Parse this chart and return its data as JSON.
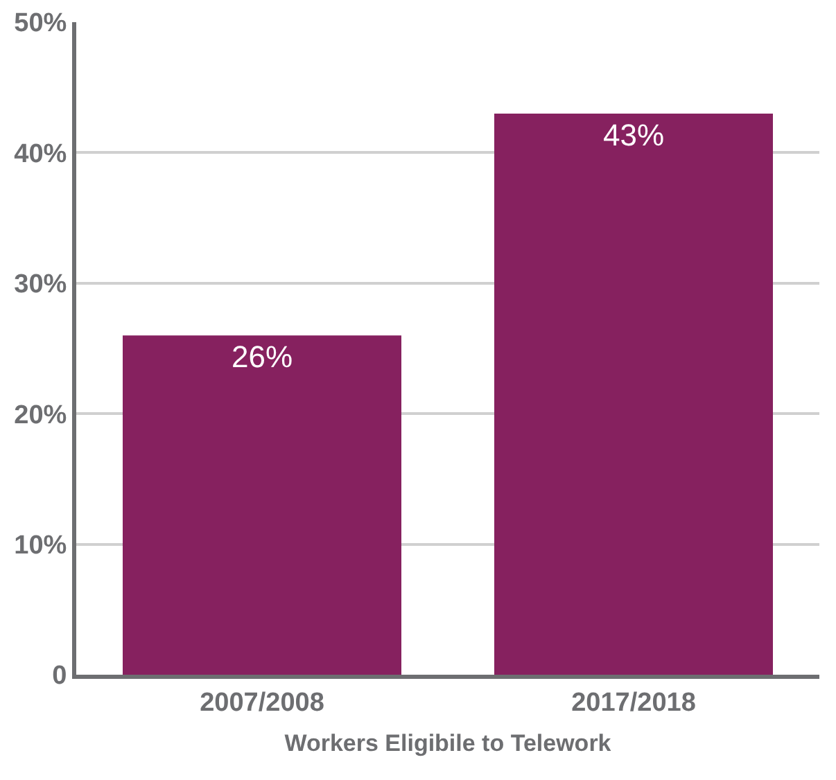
{
  "chart_data": {
    "type": "bar",
    "xlabel": "Workers Eligibile to Telework",
    "categories": [
      "2007/2008",
      "2017/2018"
    ],
    "values": [
      26,
      43
    ],
    "color": "#86215f",
    "value_labels": [
      "26%",
      "43%"
    ],
    "ylim": [
      0,
      50
    ],
    "yticks": [
      {
        "value": 0,
        "label": "0"
      },
      {
        "value": 10,
        "label": "10%"
      },
      {
        "value": 20,
        "label": "20%"
      },
      {
        "value": 30,
        "label": "30%"
      },
      {
        "value": 40,
        "label": "40%"
      },
      {
        "value": 50,
        "label": "50%"
      }
    ],
    "grid": "y",
    "legend": false
  }
}
